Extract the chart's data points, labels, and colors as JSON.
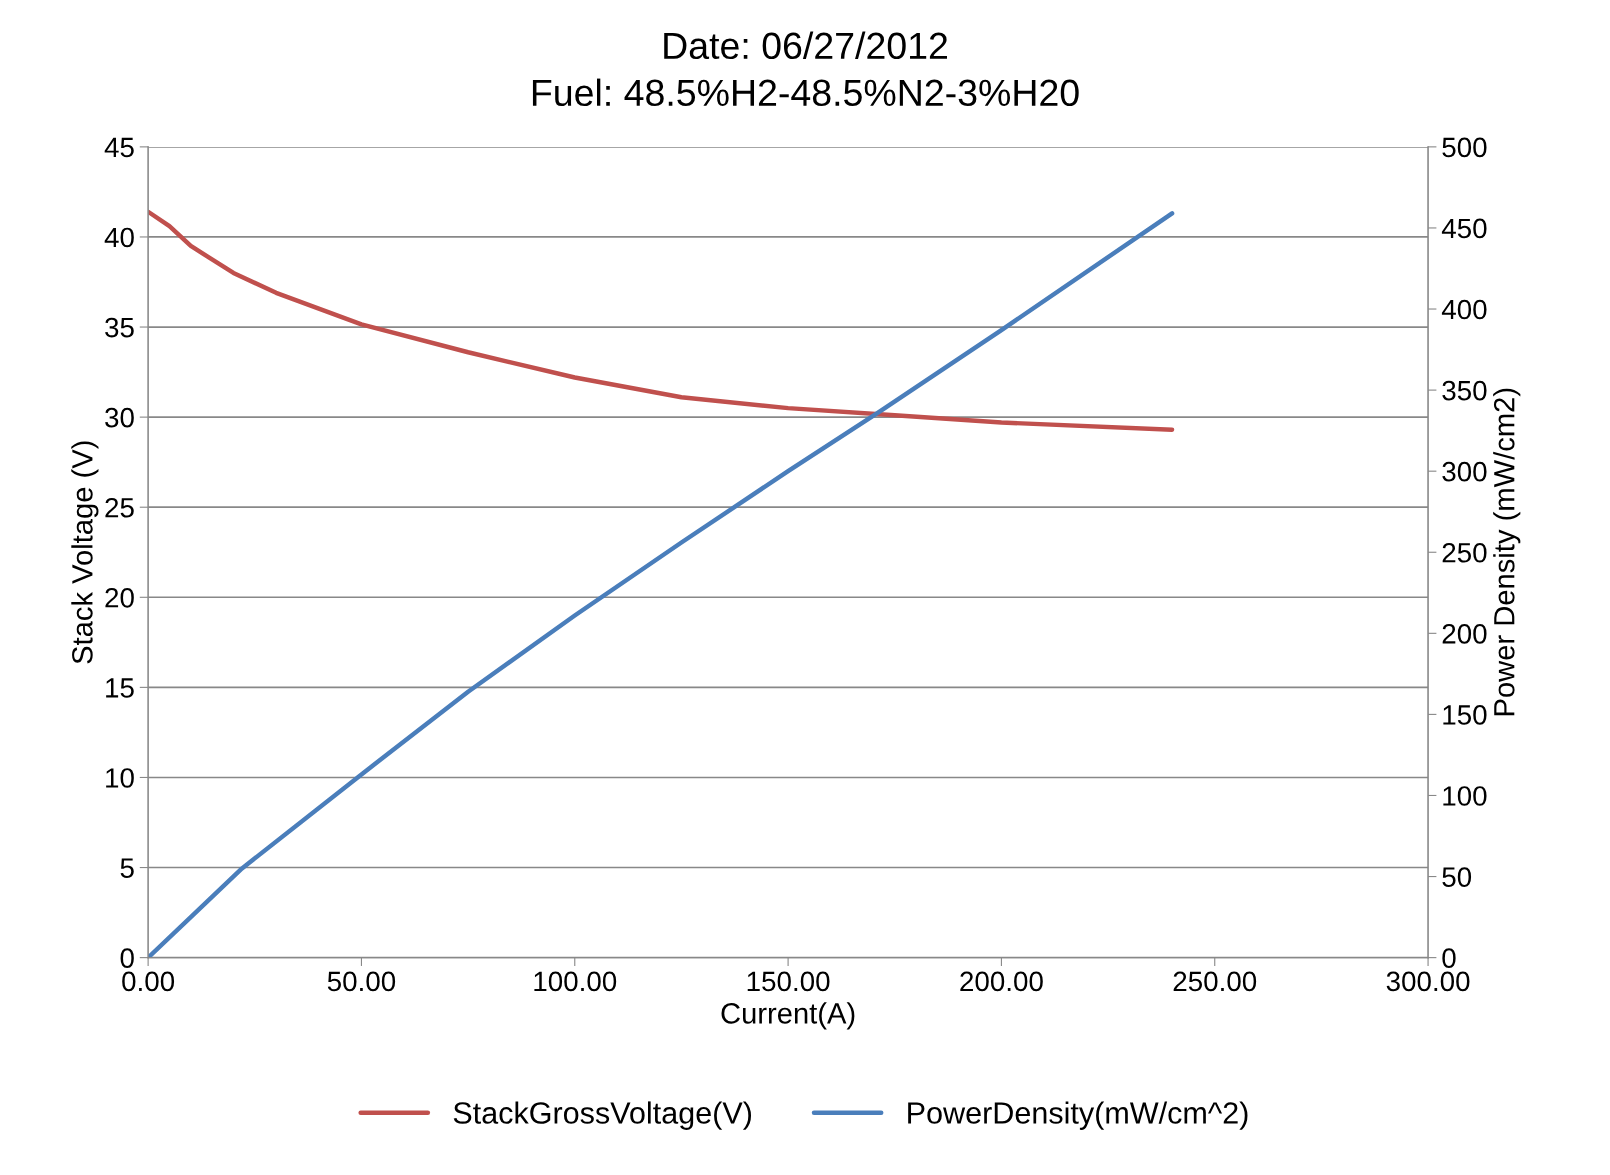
{
  "chart_data": {
    "type": "line",
    "title": "Date: 06/27/2012",
    "subtitle": "Fuel: 48.5%H2-48.5%N2-3%H20",
    "xlabel": "Current(A)",
    "ylabel": "Stack Voltage (V)",
    "y2label": "Power Density (mW/cm2)",
    "series": [
      {
        "name": "StackGrossVoltage(V)",
        "color": "#c0504d",
        "axis": "y",
        "x": [
          0,
          5,
          10,
          20,
          30,
          50,
          75,
          100,
          125,
          150,
          175,
          200,
          240
        ],
        "values": [
          41.4,
          40.6,
          39.5,
          38.0,
          36.9,
          35.15,
          33.6,
          32.2,
          31.1,
          30.5,
          30.1,
          29.7,
          29.3
        ]
      },
      {
        "name": "PowerDensity(mW/cm^2)",
        "color": "#4a7ebb",
        "axis": "y2",
        "x": [
          0,
          10,
          22,
          50,
          75,
          100,
          125,
          150,
          171,
          200,
          240
        ],
        "values": [
          0,
          25,
          55,
          113,
          164,
          211,
          256,
          300,
          336,
          387,
          459
        ]
      }
    ],
    "xlim": [
      0,
      300
    ],
    "xticks": [
      {
        "value": 0,
        "label": "0.00"
      },
      {
        "value": 50,
        "label": "50.00"
      },
      {
        "value": 100,
        "label": "100.00"
      },
      {
        "value": 150,
        "label": "150.00"
      },
      {
        "value": 200,
        "label": "200.00"
      },
      {
        "value": 250,
        "label": "250.00"
      },
      {
        "value": 300,
        "label": "300.00"
      }
    ],
    "ylim": [
      0,
      45
    ],
    "yticks": [
      0,
      5,
      10,
      15,
      20,
      25,
      30,
      35,
      40,
      45
    ],
    "y2lim": [
      0,
      500
    ],
    "y2ticks": [
      0,
      50,
      100,
      150,
      200,
      250,
      300,
      350,
      400,
      450,
      500
    ],
    "grid": "y",
    "legend": "bottom",
    "marker": "none",
    "line_style": "solid"
  }
}
